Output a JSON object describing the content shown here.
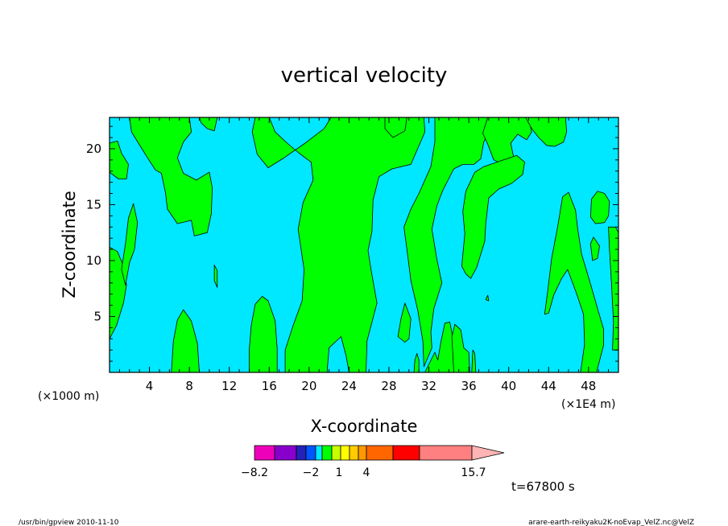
{
  "chart_data": {
    "type": "heatmap",
    "title": "vertical velocity",
    "xlabel": "X-coordinate",
    "ylabel": "Z-coordinate",
    "x_unit_label": "(×1000 m)",
    "x_scale_label": "(×1E4 m)",
    "xlim": [
      0,
      51
    ],
    "ylim": [
      0,
      22.8
    ],
    "x_ticks": [
      4,
      8,
      12,
      16,
      20,
      24,
      28,
      32,
      36,
      40,
      44,
      48
    ],
    "y_ticks": [
      5,
      10,
      15,
      20
    ],
    "time_label": "t=67800 s",
    "background_color": "#00e8ff",
    "positive_color": "#00ff00",
    "positive_regions": [
      {
        "points": [
          [
            0,
            20.5
          ],
          [
            0.8,
            20.7
          ],
          [
            1.2,
            19.6
          ],
          [
            1.9,
            18.6
          ],
          [
            1.7,
            17.3
          ],
          [
            0.9,
            17.3
          ],
          [
            0,
            17.9
          ]
        ]
      },
      {
        "points": [
          [
            0,
            11.2
          ],
          [
            0.8,
            10.8
          ],
          [
            1.4,
            9.5
          ],
          [
            1.7,
            7.8
          ],
          [
            1.4,
            6.2
          ],
          [
            0.7,
            4.2
          ],
          [
            0,
            3
          ]
        ]
      },
      {
        "points": [
          [
            1.2,
            9.2
          ],
          [
            1.6,
            11.5
          ],
          [
            1.9,
            13.8
          ],
          [
            2.4,
            15.1
          ],
          [
            2.8,
            13.4
          ],
          [
            2.5,
            11
          ],
          [
            2,
            9.8
          ],
          [
            1.6,
            7.8
          ]
        ]
      },
      {
        "points": [
          [
            2,
            22.8
          ],
          [
            8,
            22.8
          ],
          [
            8.2,
            21.5
          ],
          [
            7.4,
            20.6
          ],
          [
            6.8,
            19.2
          ],
          [
            7.4,
            17.8
          ],
          [
            8.7,
            17.2
          ],
          [
            10,
            17.9
          ],
          [
            10.3,
            16.5
          ],
          [
            10.2,
            14.2
          ],
          [
            9.8,
            12.5
          ],
          [
            8.5,
            12.2
          ],
          [
            8.2,
            13.6
          ],
          [
            6.8,
            13.3
          ],
          [
            5.8,
            14.6
          ],
          [
            5.6,
            16.1
          ],
          [
            5.2,
            17.8
          ],
          [
            4.6,
            18.1
          ],
          [
            3.8,
            19.2
          ],
          [
            2.9,
            20.5
          ],
          [
            2.2,
            21.5
          ]
        ]
      },
      {
        "points": [
          [
            9,
            22.8
          ],
          [
            10.8,
            22.8
          ],
          [
            10.5,
            21.6
          ],
          [
            9.8,
            21.8
          ],
          [
            9.2,
            22.3
          ]
        ]
      },
      {
        "points": [
          [
            10.5,
            9.6
          ],
          [
            10.8,
            9.1
          ],
          [
            10.8,
            7.6
          ],
          [
            10.5,
            8.2
          ]
        ]
      },
      {
        "points": [
          [
            6.2,
            0
          ],
          [
            9,
            0
          ],
          [
            8.8,
            2.6
          ],
          [
            8.2,
            4.6
          ],
          [
            7.4,
            5.6
          ],
          [
            6.8,
            4.7
          ],
          [
            6.4,
            2.8
          ]
        ]
      },
      {
        "points": [
          [
            14,
            0
          ],
          [
            16.8,
            0
          ],
          [
            16.8,
            2.1
          ],
          [
            16.6,
            4.6
          ],
          [
            15.9,
            6.4
          ],
          [
            15.3,
            6.8
          ],
          [
            14.6,
            6.1
          ],
          [
            14.2,
            4.2
          ],
          [
            14,
            2
          ]
        ]
      },
      {
        "points": [
          [
            17.6,
            0
          ],
          [
            21.8,
            0
          ],
          [
            22,
            2.2
          ],
          [
            23.2,
            3.2
          ],
          [
            23.7,
            1.5
          ],
          [
            24,
            0
          ],
          [
            25.7,
            0
          ],
          [
            25.8,
            2.8
          ],
          [
            26.8,
            6.2
          ],
          [
            26.2,
            9.2
          ],
          [
            25.9,
            10.9
          ],
          [
            26.3,
            12.6
          ],
          [
            26.4,
            15.4
          ],
          [
            27,
            17.5
          ],
          [
            28.3,
            18.2
          ],
          [
            30.2,
            18.6
          ],
          [
            31.6,
            21.5
          ],
          [
            31.5,
            22.8
          ],
          [
            22.2,
            22.8
          ],
          [
            21.5,
            21.8
          ],
          [
            19.6,
            20.5
          ],
          [
            17.5,
            19.2
          ],
          [
            15.9,
            18.3
          ],
          [
            14.8,
            19.5
          ],
          [
            14.3,
            21.5
          ],
          [
            14.6,
            22.8
          ],
          [
            16,
            22.8
          ],
          [
            16.6,
            21.5
          ],
          [
            17.8,
            20.5
          ],
          [
            19,
            19.6
          ],
          [
            20.2,
            18.8
          ],
          [
            20.4,
            17.2
          ],
          [
            19.4,
            15.2
          ],
          [
            18.9,
            12.8
          ],
          [
            19.5,
            9.2
          ],
          [
            19.3,
            6.4
          ],
          [
            18.4,
            4.2
          ],
          [
            17.6,
            2
          ]
        ]
      },
      {
        "points": [
          [
            27.6,
            22.8
          ],
          [
            29.8,
            22.8
          ],
          [
            29.6,
            21.6
          ],
          [
            28.4,
            21
          ],
          [
            27.6,
            21.8
          ]
        ]
      },
      {
        "points": [
          [
            32.6,
            22.8
          ],
          [
            38.5,
            22.8
          ],
          [
            38.2,
            21.8
          ],
          [
            37.5,
            20.6
          ],
          [
            37.2,
            19.1
          ],
          [
            36.5,
            18.6
          ],
          [
            35.4,
            18.6
          ],
          [
            34.5,
            18.2
          ],
          [
            33.4,
            16.3
          ],
          [
            32.8,
            14.9
          ],
          [
            32.3,
            12.8
          ],
          [
            32.8,
            10.1
          ],
          [
            33.3,
            8
          ],
          [
            32.5,
            5.7
          ],
          [
            32.2,
            3.6
          ],
          [
            32.3,
            2.2
          ],
          [
            31.5,
            0.5
          ],
          [
            31.4,
            2.8
          ],
          [
            30.9,
            5.5
          ],
          [
            30.2,
            8.2
          ],
          [
            29.8,
            11
          ],
          [
            29.5,
            13
          ],
          [
            30.2,
            14.6
          ],
          [
            31,
            16
          ],
          [
            32.2,
            18.4
          ],
          [
            32.6,
            20.6
          ]
        ]
      },
      {
        "points": [
          [
            28.9,
            3.2
          ],
          [
            29.2,
            4.8
          ],
          [
            29.6,
            6.2
          ],
          [
            30.2,
            4.8
          ],
          [
            30,
            3
          ],
          [
            29.6,
            2.7
          ]
        ]
      },
      {
        "points": [
          [
            30.5,
            0
          ],
          [
            31,
            0
          ],
          [
            31,
            1.1
          ],
          [
            30.8,
            1.7
          ],
          [
            30.6,
            1.1
          ]
        ]
      },
      {
        "points": [
          [
            31.6,
            0
          ],
          [
            34.5,
            0
          ],
          [
            34.5,
            2.6
          ],
          [
            34.1,
            4.5
          ],
          [
            33.6,
            4.4
          ],
          [
            33.2,
            2.7
          ],
          [
            32.9,
            1.1
          ],
          [
            32.6,
            1.8
          ]
        ]
      },
      {
        "points": [
          [
            34.5,
            0
          ],
          [
            36.1,
            0
          ],
          [
            36,
            1.8
          ],
          [
            35.5,
            2.2
          ],
          [
            35.2,
            3.8
          ],
          [
            34.6,
            4.3
          ],
          [
            34.3,
            3.2
          ]
        ]
      },
      {
        "points": [
          [
            36.3,
            0
          ],
          [
            36.7,
            0
          ],
          [
            36.6,
            1.7
          ],
          [
            36.4,
            2
          ]
        ]
      },
      {
        "points": [
          [
            37.9,
            22.8
          ],
          [
            42,
            22.8
          ],
          [
            42.3,
            21.5
          ],
          [
            41.8,
            20.8
          ],
          [
            40.9,
            21.3
          ],
          [
            40.2,
            20.5
          ],
          [
            40.5,
            19.2
          ],
          [
            39.9,
            18.4
          ],
          [
            38.5,
            19
          ],
          [
            37.9,
            20.4
          ],
          [
            37.4,
            21.4
          ]
        ]
      },
      {
        "points": [
          [
            35.3,
            9.5
          ],
          [
            35.6,
            12.4
          ],
          [
            35.4,
            14.4
          ],
          [
            35.7,
            16.2
          ],
          [
            36.6,
            17.9
          ],
          [
            37.5,
            18.4
          ],
          [
            38.8,
            18.8
          ],
          [
            40.8,
            19.4
          ],
          [
            41.6,
            18.8
          ],
          [
            41.4,
            17.7
          ],
          [
            40.3,
            16.9
          ],
          [
            39,
            16.4
          ],
          [
            38,
            15.6
          ],
          [
            37.7,
            13.3
          ],
          [
            37.6,
            11.7
          ],
          [
            36.8,
            9.4
          ],
          [
            36.2,
            8.4
          ],
          [
            35.7,
            8.8
          ]
        ]
      },
      {
        "points": [
          [
            37.7,
            6.5
          ],
          [
            37.9,
            6.9
          ],
          [
            38,
            6.4
          ]
        ]
      },
      {
        "points": [
          [
            41.7,
            22.8
          ],
          [
            45.7,
            22.8
          ],
          [
            45.8,
            21.5
          ],
          [
            45.5,
            20.6
          ],
          [
            44.6,
            20.2
          ],
          [
            43.8,
            20.3
          ],
          [
            43,
            21
          ],
          [
            42.3,
            21.8
          ]
        ]
      },
      {
        "points": [
          [
            43.6,
            5.2
          ],
          [
            43.9,
            7.2
          ],
          [
            44.3,
            10.2
          ],
          [
            44.9,
            13
          ],
          [
            45.4,
            15.7
          ],
          [
            46,
            16.1
          ],
          [
            46.7,
            14.5
          ],
          [
            46.9,
            12.9
          ],
          [
            47.3,
            10.6
          ],
          [
            48.2,
            7.9
          ],
          [
            49,
            5.4
          ],
          [
            49.5,
            3.9
          ],
          [
            49.5,
            2.4
          ],
          [
            48.8,
            0
          ],
          [
            47.2,
            0
          ],
          [
            47.6,
            2.5
          ],
          [
            47.5,
            5.2
          ],
          [
            46.7,
            7.3
          ],
          [
            45.9,
            9.2
          ],
          [
            45.3,
            8.4
          ],
          [
            44.5,
            6.9
          ],
          [
            44,
            5.3
          ]
        ]
      },
      {
        "points": [
          [
            48.4,
            10
          ],
          [
            48.2,
            11.5
          ],
          [
            48.5,
            12.1
          ],
          [
            49.1,
            11.3
          ],
          [
            48.9,
            10.2
          ]
        ]
      },
      {
        "points": [
          [
            48.2,
            13.9
          ],
          [
            48.3,
            15.5
          ],
          [
            48.9,
            16.2
          ],
          [
            49.6,
            16
          ],
          [
            50.1,
            15.3
          ],
          [
            50,
            14
          ],
          [
            49.6,
            13.4
          ],
          [
            48.7,
            13.3
          ]
        ]
      },
      {
        "points": [
          [
            50,
            13
          ],
          [
            50.1,
            11
          ],
          [
            50.3,
            8
          ],
          [
            50.5,
            4.5
          ],
          [
            50.4,
            2
          ],
          [
            51,
            2
          ],
          [
            51,
            12.5
          ],
          [
            50.7,
            13
          ]
        ]
      }
    ],
    "colorbar": {
      "labels": [
        "−8.2",
        "−2",
        "1",
        "4",
        "15.7"
      ],
      "colors": [
        "#ee00bb",
        "#8800cc",
        "#2222bb",
        "#0055ff",
        "#00e8ff",
        "#00ff00",
        "#c8ff00",
        "#ffff00",
        "#ffcc00",
        "#ff9900",
        "#ff6600",
        "#ff0000",
        "#ff8080",
        "#ffb4b4"
      ]
    }
  },
  "footer": {
    "left": "/usr/bin/gpview   2010-11-10",
    "right": "arare-earth-reikyaku2K-noEvap_VelZ.nc@VelZ"
  }
}
